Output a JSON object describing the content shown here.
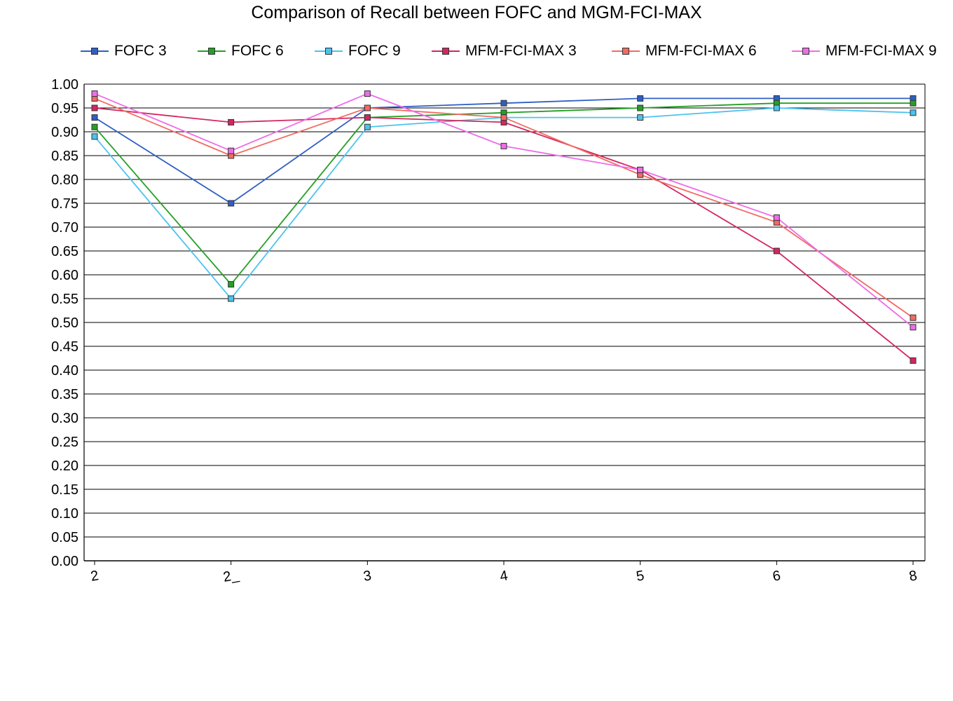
{
  "chart_data": {
    "type": "line",
    "title": "Comparison of Recall between FOFC and MGM-FCI-MAX",
    "xlabel": "",
    "ylabel": "",
    "categories": [
      "2",
      "2_",
      "3",
      "4",
      "5",
      "6",
      "8"
    ],
    "ylim": [
      0,
      1
    ],
    "yticks": [
      "0.00",
      "0.05",
      "0.10",
      "0.15",
      "0.20",
      "0.25",
      "0.30",
      "0.35",
      "0.40",
      "0.45",
      "0.50",
      "0.55",
      "0.60",
      "0.65",
      "0.70",
      "0.75",
      "0.80",
      "0.85",
      "0.90",
      "0.95",
      "1.00"
    ],
    "grid": "horizontal",
    "legend_position": "top",
    "series": [
      {
        "name": "FOFC 3",
        "color": "#2f5fc4",
        "values": [
          0.93,
          0.75,
          0.95,
          0.96,
          0.97,
          0.97,
          0.97
        ]
      },
      {
        "name": "FOFC 6",
        "color": "#24a024",
        "values": [
          0.91,
          0.58,
          0.93,
          0.94,
          0.95,
          0.96,
          0.96
        ]
      },
      {
        "name": "FOFC 9",
        "color": "#4cc3ee",
        "values": [
          0.89,
          0.55,
          0.91,
          0.93,
          0.93,
          0.95,
          0.94
        ]
      },
      {
        "name": "MFM-FCI-MAX 3",
        "color": "#d4275f",
        "values": [
          0.95,
          0.92,
          0.93,
          0.92,
          0.82,
          0.65,
          0.42
        ]
      },
      {
        "name": "MFM-FCI-MAX 6",
        "color": "#f26b63",
        "values": [
          0.97,
          0.85,
          0.95,
          0.93,
          0.81,
          0.71,
          0.51
        ]
      },
      {
        "name": "MFM-FCI-MAX 9",
        "color": "#ee6de8",
        "values": [
          0.98,
          0.86,
          0.98,
          0.87,
          0.82,
          0.72,
          0.49
        ]
      }
    ]
  }
}
